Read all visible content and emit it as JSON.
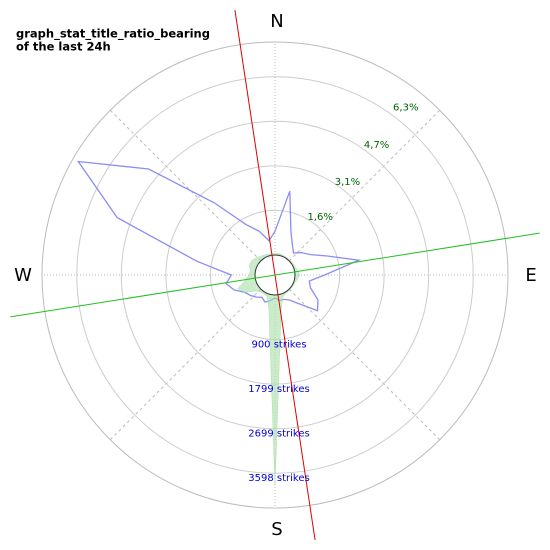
{
  "chart_data": {
    "type": "polar",
    "title_lines": [
      "graph_stat_title_ratio_bearing",
      "of the last 24h"
    ],
    "directions": [
      "N",
      "E",
      "S",
      "W"
    ],
    "bearings": [
      0,
      10,
      20,
      30,
      40,
      50,
      60,
      70,
      80,
      90,
      100,
      110,
      120,
      130,
      140,
      150,
      160,
      170,
      180,
      190,
      200,
      210,
      220,
      230,
      240,
      250,
      260,
      270,
      280,
      290,
      300,
      310,
      320,
      330,
      340,
      350
    ],
    "series": [
      {
        "name": "ratio",
        "color": "#8c8cf5",
        "axis": "ratio",
        "values": [
          0.8,
          2.2,
          0.9,
          0.5,
          0.3,
          0.5,
          0.7,
          1.2,
          2.2,
          1.0,
          0.5,
          0.6,
          1.0,
          1.2,
          0.6,
          0.3,
          0.2,
          0.2,
          0.1,
          0.2,
          0.3,
          0.2,
          0.3,
          0.4,
          0.5,
          0.8,
          1.0,
          0.8,
          2.0,
          5.0,
          7.0,
          4.9,
          2.5,
          1.3,
          0.9,
          0.5
        ]
      },
      {
        "name": "strikes",
        "color": "#a8e0a8",
        "axis": "strikes",
        "values": [
          30,
          40,
          30,
          20,
          20,
          20,
          30,
          40,
          60,
          100,
          60,
          30,
          20,
          20,
          20,
          30,
          60,
          300,
          3850,
          300,
          60,
          40,
          40,
          100,
          300,
          400,
          200,
          120,
          100,
          150,
          150,
          120,
          80,
          60,
          40,
          30
        ]
      }
    ],
    "ratio_lim": [
      0,
      7.2
    ],
    "ratio_ticks": [
      {
        "value": 1.6,
        "label": "1,6%"
      },
      {
        "value": 3.1,
        "label": "3,1%"
      },
      {
        "value": 4.7,
        "label": "4,7%"
      },
      {
        "value": 6.3,
        "label": "6,3%"
      }
    ],
    "strikes_lim": [
      0,
      4300
    ],
    "strikes_ticks": [
      {
        "value": 900,
        "label": "900 strikes"
      },
      {
        "value": 1799,
        "label": "1799 strikes"
      },
      {
        "value": 2699,
        "label": "2699 strikes"
      },
      {
        "value": 3598,
        "label": "3598 strikes"
      }
    ],
    "bearing_lines": [
      {
        "bearing": 351.4,
        "color": "#e00000"
      },
      {
        "bearing": 81,
        "color": "#20c020"
      }
    ]
  }
}
